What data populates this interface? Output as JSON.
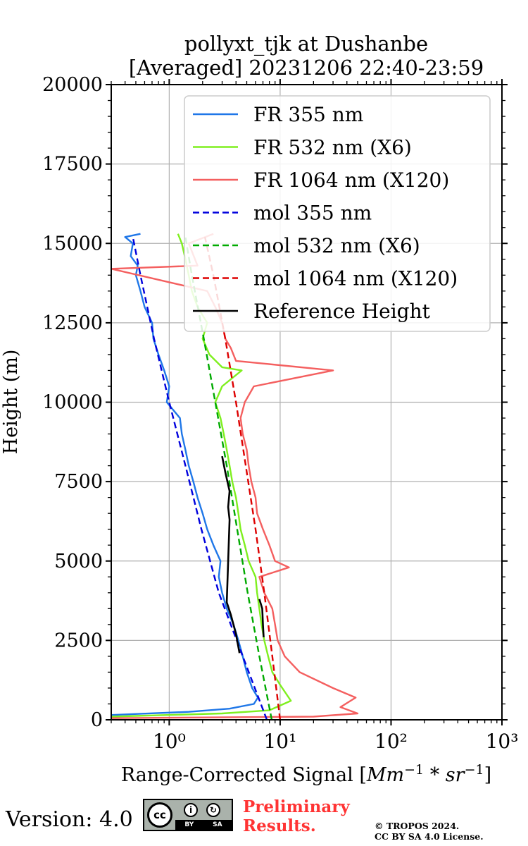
{
  "title_line1": "pollyxt_tjk at Dushanbe",
  "title_line2": "[Averaged] 20231206 22:40-23:59",
  "footer": {
    "version": "Version: 4.0",
    "cc_text": "cc",
    "cc_by": "BY",
    "cc_sa": "SA",
    "preliminary_line1": "Preliminary",
    "preliminary_line2": "Results.",
    "copyright_line1": "© TROPOS 2024.",
    "copyright_line2": "CC BY SA 4.0 License."
  },
  "chart_data": {
    "type": "line",
    "title": "pollyxt_tjk at Dushanbe [Averaged] 20231206 22:40-23:59",
    "xlabel": "Range-Corrected Signal [Mm^-1 * sr^-1]",
    "ylabel": "Height (m)",
    "xscale": "log",
    "xlim": [
      0.3,
      1000
    ],
    "ylim": [
      0,
      20000
    ],
    "xticks": [
      {
        "v": 1,
        "label": "10⁰"
      },
      {
        "v": 10,
        "label": "10¹"
      },
      {
        "v": 100,
        "label": "10²"
      },
      {
        "v": 1000,
        "label": "10³"
      }
    ],
    "yticks": [
      0,
      2500,
      5000,
      7500,
      10000,
      12500,
      15000,
      17500,
      20000
    ],
    "grid": true,
    "legend_position": "top-right",
    "series": [
      {
        "name": "FR 355 nm",
        "color": "#1f77e8",
        "style": "solid",
        "points": [
          [
            0.3,
            150
          ],
          [
            1.5,
            250
          ],
          [
            3.5,
            350
          ],
          [
            5.8,
            500
          ],
          [
            6.3,
            700
          ],
          [
            5.6,
            1000
          ],
          [
            5.0,
            1500
          ],
          [
            4.6,
            2000
          ],
          [
            4.2,
            2500
          ],
          [
            3.8,
            3000
          ],
          [
            3.3,
            3500
          ],
          [
            3.0,
            4000
          ],
          [
            2.8,
            4500
          ],
          [
            2.9,
            5000
          ],
          [
            2.5,
            5500
          ],
          [
            2.2,
            6000
          ],
          [
            2.0,
            6500
          ],
          [
            1.8,
            7000
          ],
          [
            1.65,
            7500
          ],
          [
            1.5,
            8000
          ],
          [
            1.4,
            8500
          ],
          [
            1.3,
            9000
          ],
          [
            1.25,
            9500
          ],
          [
            0.95,
            10000
          ],
          [
            1.0,
            10500
          ],
          [
            0.9,
            11000
          ],
          [
            0.8,
            11500
          ],
          [
            0.72,
            12000
          ],
          [
            0.7,
            12500
          ],
          [
            0.6,
            13000
          ],
          [
            0.55,
            13500
          ],
          [
            0.5,
            14000
          ],
          [
            0.52,
            14300
          ],
          [
            0.45,
            14600
          ],
          [
            0.47,
            15000
          ],
          [
            0.4,
            15200
          ],
          [
            0.55,
            15300
          ]
        ]
      },
      {
        "name": "FR 532 nm (X6)",
        "color": "#7fef1f",
        "style": "solid",
        "points": [
          [
            0.3,
            100
          ],
          [
            3.0,
            200
          ],
          [
            8.0,
            300
          ],
          [
            12.5,
            600
          ],
          [
            10.0,
            1100
          ],
          [
            8.5,
            1500
          ],
          [
            7.8,
            2000
          ],
          [
            7.2,
            2500
          ],
          [
            6.8,
            3000
          ],
          [
            6.5,
            3500
          ],
          [
            6.2,
            4000
          ],
          [
            6.0,
            4500
          ],
          [
            5.2,
            5000
          ],
          [
            4.8,
            5500
          ],
          [
            4.4,
            6000
          ],
          [
            4.2,
            6500
          ],
          [
            4.0,
            7000
          ],
          [
            3.7,
            7500
          ],
          [
            3.5,
            8000
          ],
          [
            3.3,
            8500
          ],
          [
            3.1,
            9000
          ],
          [
            2.9,
            9500
          ],
          [
            2.6,
            10000
          ],
          [
            3.0,
            10500
          ],
          [
            4.5,
            11000
          ],
          [
            3.0,
            11100
          ],
          [
            2.3,
            11500
          ],
          [
            2.0,
            12000
          ],
          [
            2.2,
            12500
          ],
          [
            1.8,
            13000
          ],
          [
            1.6,
            13500
          ],
          [
            1.5,
            14000
          ],
          [
            1.4,
            14500
          ],
          [
            1.3,
            15000
          ],
          [
            1.2,
            15300
          ]
        ]
      },
      {
        "name": "FR 1064 nm (X120)",
        "color": "#f45f5f",
        "style": "solid",
        "points": [
          [
            0.3,
            50
          ],
          [
            20,
            100
          ],
          [
            50,
            200
          ],
          [
            35,
            400
          ],
          [
            48,
            700
          ],
          [
            30,
            1000
          ],
          [
            15,
            1500
          ],
          [
            11,
            2000
          ],
          [
            9.5,
            2500
          ],
          [
            9.0,
            3000
          ],
          [
            8.5,
            3500
          ],
          [
            7.2,
            4000
          ],
          [
            6.5,
            4500
          ],
          [
            12,
            4800
          ],
          [
            9.0,
            5000
          ],
          [
            8.0,
            5500
          ],
          [
            7.0,
            6000
          ],
          [
            6.2,
            6500
          ],
          [
            6.0,
            7000
          ],
          [
            5.5,
            7500
          ],
          [
            5.2,
            8000
          ],
          [
            5.0,
            8500
          ],
          [
            4.6,
            9000
          ],
          [
            4.4,
            9500
          ],
          [
            4.8,
            10000
          ],
          [
            5.8,
            10500
          ],
          [
            30,
            11000
          ],
          [
            4.0,
            11300
          ],
          [
            3.6,
            11700
          ],
          [
            3.2,
            12000
          ],
          [
            3.0,
            12500
          ],
          [
            2.6,
            13000
          ],
          [
            2.2,
            13500
          ],
          [
            0.3,
            14200
          ],
          [
            1.8,
            14300
          ],
          [
            1.5,
            15000
          ],
          [
            2.5,
            15300
          ]
        ]
      },
      {
        "name": "mol 355 nm",
        "color": "#0000dd",
        "style": "dashed",
        "points": [
          [
            7.6,
            0
          ],
          [
            4.6,
            2000
          ],
          [
            2.8,
            4000
          ],
          [
            1.95,
            6000
          ],
          [
            1.4,
            8000
          ],
          [
            1.0,
            10000
          ],
          [
            0.73,
            12000
          ],
          [
            0.55,
            14000
          ],
          [
            0.47,
            15200
          ]
        ]
      },
      {
        "name": "mol 532 nm (X6)",
        "color": "#00aa00",
        "style": "dashed",
        "points": [
          [
            8.4,
            0
          ],
          [
            6.5,
            2000
          ],
          [
            5.1,
            4000
          ],
          [
            4.1,
            6000
          ],
          [
            3.3,
            8000
          ],
          [
            2.6,
            10000
          ],
          [
            2.05,
            12000
          ],
          [
            1.6,
            14000
          ],
          [
            1.4,
            15200
          ]
        ]
      },
      {
        "name": "mol 1064 nm (X120)",
        "color": "#dd0000",
        "style": "dashed",
        "points": [
          [
            10.0,
            0
          ],
          [
            8.5,
            2000
          ],
          [
            7.2,
            4000
          ],
          [
            6.0,
            6000
          ],
          [
            4.9,
            8000
          ],
          [
            4.0,
            10000
          ],
          [
            3.2,
            12000
          ],
          [
            2.5,
            14000
          ],
          [
            2.1,
            15200
          ]
        ]
      },
      {
        "name": "Reference Height",
        "color": "#000000",
        "style": "solid",
        "points": [
          [
            3.0,
            8300
          ],
          [
            3.2,
            7800
          ],
          [
            3.5,
            7200
          ],
          [
            3.4,
            6700
          ],
          [
            3.5,
            6300
          ],
          [
            3.3,
            3700
          ],
          [
            3.6,
            3300
          ],
          [
            4.0,
            2700
          ],
          [
            4.3,
            2100
          ],
          [
            6.5,
            3800
          ],
          [
            6.9,
            3500
          ],
          [
            7.0,
            3000
          ],
          [
            7.1,
            2600
          ]
        ]
      }
    ]
  }
}
